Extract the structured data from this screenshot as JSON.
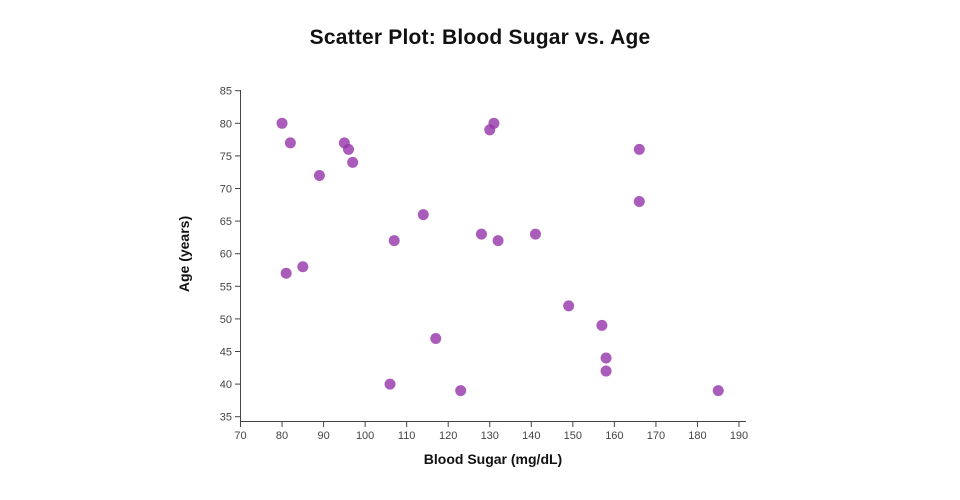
{
  "title": "Scatter Plot: Blood Sugar vs. Age",
  "chart_data": {
    "type": "scatter",
    "title": "Scatter Plot: Blood Sugar vs. Age",
    "xlabel": "Blood Sugar (mg/dL)",
    "ylabel": "Age (years)",
    "xlim": [
      70,
      190
    ],
    "ylim": [
      35,
      85
    ],
    "x_ticks": [
      70,
      80,
      90,
      100,
      110,
      120,
      130,
      140,
      150,
      160,
      170,
      180,
      190
    ],
    "y_ticks": [
      35,
      40,
      45,
      50,
      55,
      60,
      65,
      70,
      75,
      80,
      85
    ],
    "grid": false,
    "legend": false,
    "marker_color": "#9333a8",
    "marker_opacity": 0.8,
    "marker_radius": 5.5,
    "axis_color": "#444444",
    "points": [
      {
        "x": 80,
        "y": 80
      },
      {
        "x": 82,
        "y": 77
      },
      {
        "x": 95,
        "y": 77
      },
      {
        "x": 96,
        "y": 76
      },
      {
        "x": 97,
        "y": 74
      },
      {
        "x": 89,
        "y": 72
      },
      {
        "x": 114,
        "y": 66
      },
      {
        "x": 107,
        "y": 62
      },
      {
        "x": 81,
        "y": 57
      },
      {
        "x": 85,
        "y": 58
      },
      {
        "x": 117,
        "y": 47
      },
      {
        "x": 106,
        "y": 40
      },
      {
        "x": 123,
        "y": 39
      },
      {
        "x": 131,
        "y": 80
      },
      {
        "x": 130,
        "y": 79
      },
      {
        "x": 128,
        "y": 63
      },
      {
        "x": 132,
        "y": 62
      },
      {
        "x": 141,
        "y": 63
      },
      {
        "x": 149,
        "y": 52
      },
      {
        "x": 157,
        "y": 49
      },
      {
        "x": 158,
        "y": 44
      },
      {
        "x": 158,
        "y": 42
      },
      {
        "x": 166,
        "y": 76
      },
      {
        "x": 166,
        "y": 68
      },
      {
        "x": 185,
        "y": 39
      }
    ]
  }
}
